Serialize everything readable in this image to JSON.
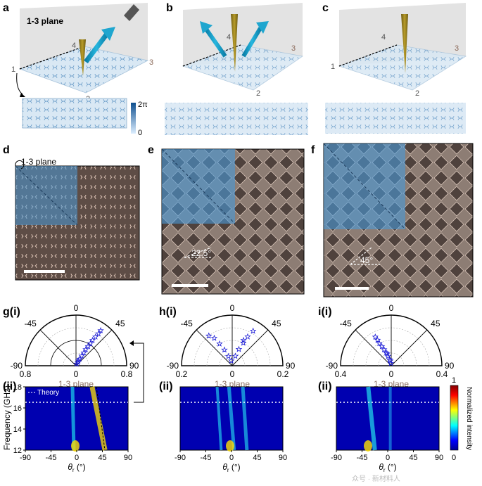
{
  "panels": {
    "a": "a",
    "b": "b",
    "c": "c",
    "d": "d",
    "e": "e",
    "f": "f",
    "gi": "g(i)",
    "hi": "h(i)",
    "ii": "i(i)",
    "gii": "(ii)",
    "hii": "(ii)",
    "iii": "(ii)"
  },
  "plane_a": "1-3 plane",
  "plane_d": "1-3 plane",
  "corners": [
    "1",
    "2",
    "3",
    "4"
  ],
  "colorbar_a": {
    "max": "2π",
    "min": "0"
  },
  "angle_e": "22.5°",
  "angle_f": "45°",
  "polar": [
    {
      "ticks": [
        "0",
        "-45",
        "45",
        "-90",
        "90"
      ],
      "r_left": "0.8",
      "r_mid": "0",
      "r_right": "0.8",
      "caption": "1-3 plane",
      "points": [
        [
          0.06,
          28
        ],
        [
          0.12,
          28
        ],
        [
          0.18,
          30
        ],
        [
          0.24,
          31
        ],
        [
          0.3,
          31
        ],
        [
          0.36,
          32
        ],
        [
          0.42,
          33
        ],
        [
          0.48,
          33
        ],
        [
          0.55,
          34
        ],
        [
          0.62,
          35
        ],
        [
          0.68,
          35
        ],
        [
          0.03,
          20
        ],
        [
          0.09,
          25
        ]
      ]
    },
    {
      "ticks": [
        "0",
        "-45",
        "45",
        "-90",
        "90"
      ],
      "r_left": "0.2",
      "r_mid": "0",
      "r_right": "0.2",
      "caption": "1-3 plane",
      "points": [
        [
          0.04,
          -22
        ],
        [
          0.07,
          -26
        ],
        [
          0.1,
          -30
        ],
        [
          0.13,
          -33
        ],
        [
          0.15,
          -38
        ],
        [
          0.04,
          18
        ],
        [
          0.07,
          22
        ],
        [
          0.1,
          26
        ],
        [
          0.13,
          28
        ],
        [
          0.16,
          31
        ],
        [
          0.11,
          24
        ],
        [
          0.02,
          -10
        ]
      ]
    },
    {
      "ticks": [
        "0",
        "-45",
        "45",
        "-90",
        "90"
      ],
      "r_left": "0.4",
      "r_mid": "0",
      "r_right": "0.4",
      "caption": "1-3 plane",
      "points": [
        [
          0.02,
          -8
        ],
        [
          0.05,
          -14
        ],
        [
          0.08,
          -18
        ],
        [
          0.11,
          -21
        ],
        [
          0.14,
          -24
        ],
        [
          0.17,
          -26
        ],
        [
          0.2,
          -28
        ],
        [
          0.23,
          -28
        ],
        [
          0.26,
          -29
        ],
        [
          0.04,
          -10
        ],
        [
          0.1,
          -19
        ]
      ]
    }
  ],
  "maps": {
    "ylabel": "Frequency (GHz)",
    "yticks": [
      "12",
      "14",
      "16",
      "18"
    ],
    "xticks": [
      "-90",
      "-45",
      "0",
      "45",
      "90"
    ],
    "xlabel_sym": "θ",
    "xlabel_sub": "r",
    "xlabel_unit": " (°)",
    "legend": "Theory",
    "colorbar": {
      "max": "1",
      "min": "0",
      "label": "Normalized intensity"
    }
  },
  "watermark": "众号 · 新材料人"
}
